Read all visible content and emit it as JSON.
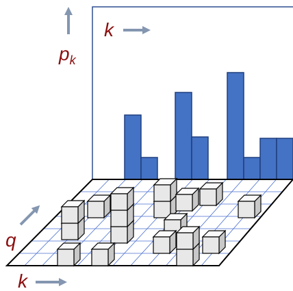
{
  "labels": {
    "panel_k": "k",
    "p": "p",
    "p_sub": "k",
    "q": "q",
    "floor_k": "k"
  }
}
